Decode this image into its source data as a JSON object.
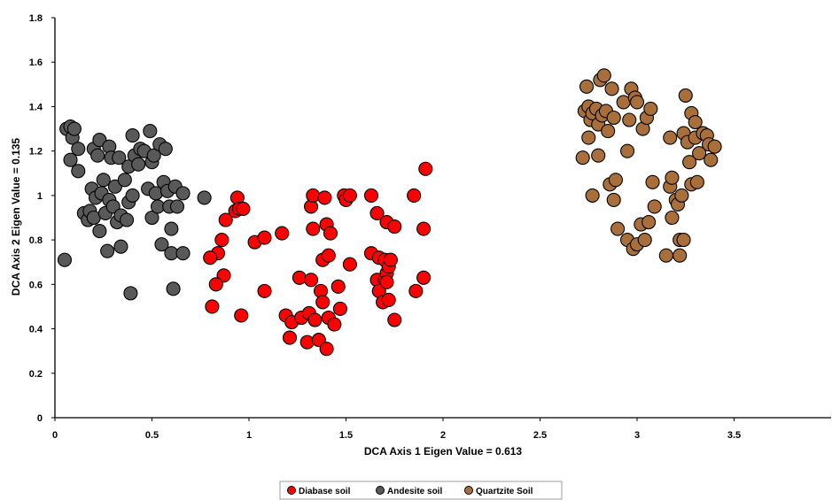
{
  "chart_data": {
    "type": "scatter",
    "title": "",
    "xlabel": "DCA  Axis 1  Eigen Value = 0.613",
    "ylabel": "DCA  Axis 2  Eigen Value = 0.135",
    "xlim": [
      0,
      4
    ],
    "ylim": [
      0,
      1.8
    ],
    "x_ticks": [
      "0",
      "0.5",
      "1",
      "1.5",
      "2",
      "2.5",
      "3",
      "3.5"
    ],
    "y_ticks": [
      "0",
      "0.2",
      "0.4",
      "0.6",
      "0.8",
      "1",
      "1.2",
      "1.4",
      "1.6",
      "1.8"
    ],
    "grid": false,
    "legend_position": "bottom",
    "series": [
      {
        "name": "Diabase soil",
        "color": "#ff0000",
        "points": [
          [
            0.94,
            0.99
          ],
          [
            0.93,
            0.93
          ],
          [
            0.95,
            0.94
          ],
          [
            0.97,
            0.94
          ],
          [
            0.88,
            0.89
          ],
          [
            0.86,
            0.8
          ],
          [
            0.84,
            0.74
          ],
          [
            0.8,
            0.72
          ],
          [
            0.87,
            0.64
          ],
          [
            0.83,
            0.6
          ],
          [
            0.81,
            0.5
          ],
          [
            0.96,
            0.46
          ],
          [
            1.03,
            0.79
          ],
          [
            1.08,
            0.81
          ],
          [
            1.08,
            0.57
          ],
          [
            1.17,
            0.83
          ],
          [
            1.19,
            0.46
          ],
          [
            1.21,
            0.36
          ],
          [
            1.22,
            0.43
          ],
          [
            1.26,
            0.63
          ],
          [
            1.27,
            0.45
          ],
          [
            1.3,
            0.34
          ],
          [
            1.31,
            0.47
          ],
          [
            1.32,
            0.62
          ],
          [
            1.32,
            0.95
          ],
          [
            1.33,
            1.0
          ],
          [
            1.33,
            0.85
          ],
          [
            1.34,
            0.44
          ],
          [
            1.36,
            0.35
          ],
          [
            1.37,
            0.57
          ],
          [
            1.38,
            0.71
          ],
          [
            1.38,
            0.52
          ],
          [
            1.39,
            0.99
          ],
          [
            1.4,
            0.31
          ],
          [
            1.4,
            0.87
          ],
          [
            1.41,
            0.45
          ],
          [
            1.41,
            0.73
          ],
          [
            1.42,
            0.83
          ],
          [
            1.44,
            0.42
          ],
          [
            1.46,
            0.59
          ],
          [
            1.47,
            0.49
          ],
          [
            1.49,
            1.0
          ],
          [
            1.5,
            0.98
          ],
          [
            1.52,
            1.0
          ],
          [
            1.52,
            0.69
          ],
          [
            1.63,
            1.0
          ],
          [
            1.63,
            0.74
          ],
          [
            1.66,
            0.62
          ],
          [
            1.66,
            0.92
          ],
          [
            1.67,
            0.57
          ],
          [
            1.67,
            0.72
          ],
          [
            1.69,
            0.52
          ],
          [
            1.7,
            0.62
          ],
          [
            1.7,
            0.71
          ],
          [
            1.71,
            0.65
          ],
          [
            1.71,
            0.88
          ],
          [
            1.71,
            0.61
          ],
          [
            1.72,
            0.53
          ],
          [
            1.72,
            0.68
          ],
          [
            1.73,
            0.71
          ],
          [
            1.75,
            0.86
          ],
          [
            1.75,
            0.44
          ],
          [
            1.85,
            1.0
          ],
          [
            1.86,
            0.57
          ],
          [
            1.9,
            0.63
          ],
          [
            1.9,
            0.85
          ],
          [
            1.91,
            1.12
          ]
        ]
      },
      {
        "name": "Andesite soil",
        "color": "#595959",
        "points": [
          [
            0.05,
            0.71
          ],
          [
            0.06,
            1.3
          ],
          [
            0.08,
            1.31
          ],
          [
            0.08,
            1.16
          ],
          [
            0.09,
            1.26
          ],
          [
            0.1,
            1.3
          ],
          [
            0.12,
            1.21
          ],
          [
            0.12,
            1.11
          ],
          [
            0.15,
            0.92
          ],
          [
            0.17,
            0.89
          ],
          [
            0.18,
            0.93
          ],
          [
            0.19,
            1.03
          ],
          [
            0.2,
            0.9
          ],
          [
            0.2,
            1.21
          ],
          [
            0.21,
            0.99
          ],
          [
            0.22,
            1.18
          ],
          [
            0.23,
            1.25
          ],
          [
            0.23,
            0.84
          ],
          [
            0.24,
            1.01
          ],
          [
            0.25,
            1.07
          ],
          [
            0.26,
            0.92
          ],
          [
            0.27,
            0.75
          ],
          [
            0.28,
            0.98
          ],
          [
            0.28,
            1.22
          ],
          [
            0.29,
            1.17
          ],
          [
            0.3,
            0.95
          ],
          [
            0.31,
            1.04
          ],
          [
            0.32,
            0.88
          ],
          [
            0.33,
            1.17
          ],
          [
            0.34,
            0.91
          ],
          [
            0.34,
            0.77
          ],
          [
            0.36,
            1.07
          ],
          [
            0.37,
            0.89
          ],
          [
            0.38,
            0.97
          ],
          [
            0.38,
            1.13
          ],
          [
            0.39,
            0.56
          ],
          [
            0.4,
            1.27
          ],
          [
            0.4,
            1.0
          ],
          [
            0.41,
            1.18
          ],
          [
            0.43,
            1.14
          ],
          [
            0.44,
            1.21
          ],
          [
            0.46,
            1.2
          ],
          [
            0.48,
            1.03
          ],
          [
            0.49,
            1.29
          ],
          [
            0.5,
            0.9
          ],
          [
            0.5,
            1.15
          ],
          [
            0.51,
            1.18
          ],
          [
            0.52,
            1.01
          ],
          [
            0.53,
            0.95
          ],
          [
            0.54,
            1.23
          ],
          [
            0.55,
            0.78
          ],
          [
            0.56,
            1.06
          ],
          [
            0.57,
            1.21
          ],
          [
            0.58,
            1.02
          ],
          [
            0.59,
            0.95
          ],
          [
            0.6,
            0.85
          ],
          [
            0.6,
            0.74
          ],
          [
            0.61,
            0.58
          ],
          [
            0.62,
            1.04
          ],
          [
            0.63,
            0.95
          ],
          [
            0.66,
            1.01
          ],
          [
            0.66,
            0.74
          ],
          [
            0.77,
            0.99
          ]
        ]
      },
      {
        "name": "Quartzite Soil",
        "color": "#a96f3a",
        "points": [
          [
            2.72,
            1.17
          ],
          [
            2.73,
            1.38
          ],
          [
            2.74,
            1.49
          ],
          [
            2.75,
            1.4
          ],
          [
            2.75,
            1.26
          ],
          [
            2.76,
            1.34
          ],
          [
            2.77,
            1.37
          ],
          [
            2.77,
            1.0
          ],
          [
            2.79,
            1.39
          ],
          [
            2.8,
            1.18
          ],
          [
            2.8,
            1.32
          ],
          [
            2.81,
            1.52
          ],
          [
            2.82,
            1.36
          ],
          [
            2.83,
            1.54
          ],
          [
            2.84,
            1.38
          ],
          [
            2.85,
            1.29
          ],
          [
            2.86,
            1.05
          ],
          [
            2.87,
            1.48
          ],
          [
            2.88,
            1.35
          ],
          [
            2.88,
            0.98
          ],
          [
            2.89,
            1.07
          ],
          [
            2.9,
            0.85
          ],
          [
            2.93,
            1.42
          ],
          [
            2.95,
            1.2
          ],
          [
            2.95,
            0.8
          ],
          [
            2.96,
            1.34
          ],
          [
            2.97,
            1.48
          ],
          [
            2.98,
            0.76
          ],
          [
            2.99,
            1.44
          ],
          [
            3.0,
            1.42
          ],
          [
            3.0,
            0.78
          ],
          [
            3.02,
            0.87
          ],
          [
            3.03,
            1.3
          ],
          [
            3.04,
            0.8
          ],
          [
            3.05,
            1.35
          ],
          [
            3.06,
            0.88
          ],
          [
            3.07,
            1.39
          ],
          [
            3.08,
            1.06
          ],
          [
            3.09,
            0.95
          ],
          [
            3.15,
            0.73
          ],
          [
            3.17,
            1.26
          ],
          [
            3.17,
            1.04
          ],
          [
            3.18,
            0.9
          ],
          [
            3.18,
            1.08
          ],
          [
            3.2,
            0.98
          ],
          [
            3.21,
            0.96
          ],
          [
            3.22,
            0.73
          ],
          [
            3.22,
            0.8
          ],
          [
            3.23,
            1.0
          ],
          [
            3.24,
            1.28
          ],
          [
            3.24,
            0.8
          ],
          [
            3.25,
            1.45
          ],
          [
            3.26,
            1.24
          ],
          [
            3.27,
            1.15
          ],
          [
            3.28,
            1.37
          ],
          [
            3.28,
            1.05
          ],
          [
            3.3,
            1.33
          ],
          [
            3.3,
            1.26
          ],
          [
            3.31,
            1.06
          ],
          [
            3.32,
            1.19
          ],
          [
            3.34,
            1.28
          ],
          [
            3.36,
            1.27
          ],
          [
            3.37,
            1.23
          ],
          [
            3.38,
            1.16
          ],
          [
            3.4,
            1.22
          ]
        ]
      }
    ]
  }
}
